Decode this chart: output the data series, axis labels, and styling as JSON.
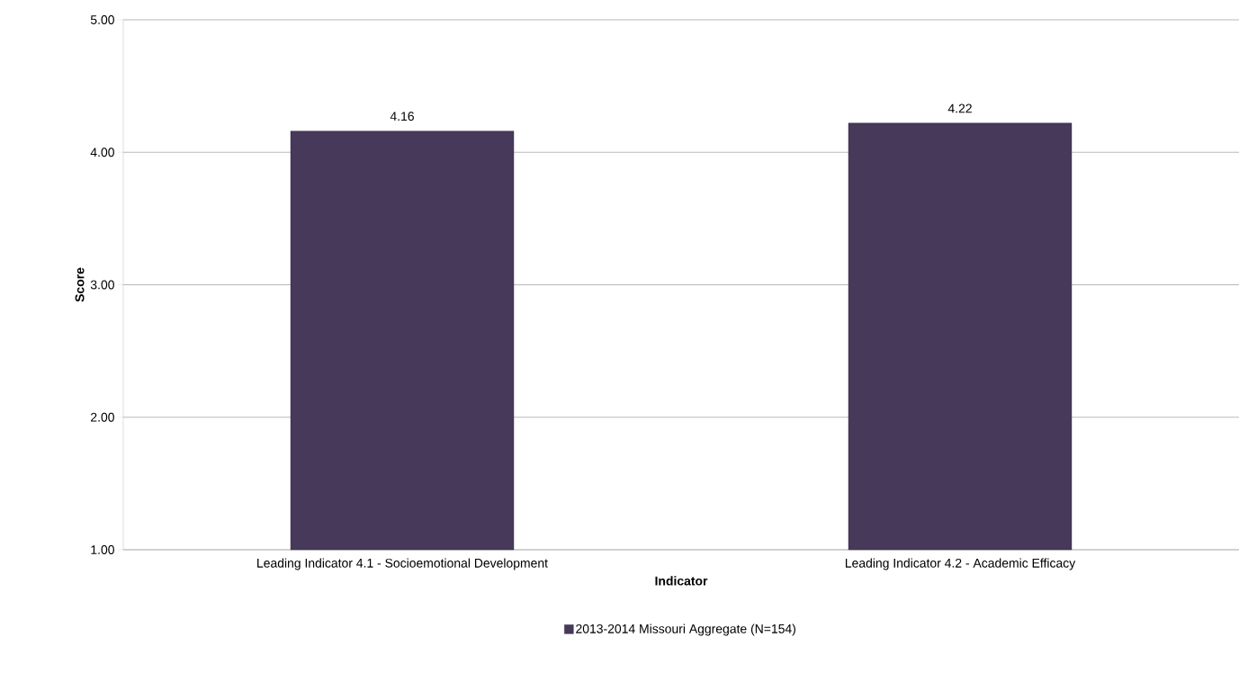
{
  "chart_data": {
    "type": "bar",
    "xlabel": "Indicator",
    "ylabel": "Score",
    "categories": [
      "Leading Indicator 4.1 - Socioemotional Development",
      "Leading Indicator 4.2 - Academic Efficacy"
    ],
    "series": [
      {
        "name": "2013-2014 Missouri Aggregate (N=154)",
        "color": "#46395a",
        "values": [
          4.16,
          4.22
        ],
        "value_labels": [
          "4.16",
          "4.22"
        ]
      }
    ],
    "ylim": [
      1,
      5
    ],
    "yticks": [
      {
        "value": 1,
        "label": "1.00"
      },
      {
        "value": 2,
        "label": "2.00"
      },
      {
        "value": 3,
        "label": "3.00"
      },
      {
        "value": 4,
        "label": "4.00"
      },
      {
        "value": 5,
        "label": "5.00"
      }
    ],
    "grid": "y",
    "legend": "bottom"
  }
}
